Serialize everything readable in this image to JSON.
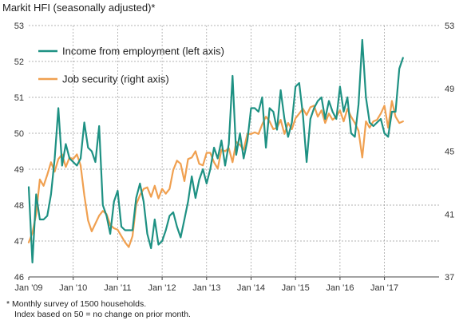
{
  "chart_data": {
    "type": "line",
    "title": "Markit HFI (seasonally adjusted)*",
    "footnotes": [
      "* Monthly survey of 1500 households.",
      "Index based on 50 = no change on prior month."
    ],
    "x_tick_labels": [
      "Jan '09",
      "Jan '10",
      "Jan '11",
      "Jan '12",
      "Jan '13",
      "Jan '14",
      "Jan '15",
      "Jan '16",
      "Jan '17"
    ],
    "y_left": {
      "ticks": [
        46,
        47,
        48,
        49,
        50,
        51,
        52,
        53
      ],
      "range": [
        46,
        53
      ]
    },
    "y_right": {
      "ticks": [
        37,
        41,
        45,
        49,
        53
      ],
      "range": [
        37,
        53
      ]
    },
    "grid": true,
    "legend_position": "top-left",
    "x_start": "2009-01",
    "series": [
      {
        "name": "Income from employment (left axis)",
        "axis": "left",
        "color": "#1e9183",
        "values": [
          48.5,
          46.4,
          48.3,
          47.6,
          47.6,
          47.7,
          48.3,
          49.3,
          50.7,
          49.1,
          49.7,
          49.3,
          49.2,
          49.1,
          49.3,
          50.3,
          49.6,
          49.5,
          49.2,
          50.2,
          48.0,
          47.7,
          47.2,
          48.1,
          48.4,
          47.4,
          47.3,
          47.3,
          47.3,
          48.2,
          48.6,
          48.1,
          47.2,
          46.8,
          47.6,
          46.9,
          47.0,
          47.3,
          47.7,
          47.8,
          47.4,
          47.1,
          47.6,
          48.1,
          48.8,
          48.2,
          48.7,
          49.0,
          48.6,
          49.0,
          49.6,
          49.3,
          49.8,
          49.1,
          49.7,
          51.6,
          49.4,
          50.0,
          49.3,
          49.8,
          50.7,
          50.7,
          50.6,
          51.0,
          49.6,
          50.7,
          50.6,
          50.1,
          51.2,
          50.4,
          49.9,
          50.3,
          51.3,
          51.4,
          50.5,
          49.2,
          50.4,
          50.7,
          50.9,
          51.0,
          50.4,
          50.9,
          50.6,
          50.4,
          51.3,
          50.6,
          51.0,
          50.0,
          49.9,
          50.8,
          52.6,
          51.0,
          50.3,
          50.2,
          50.3,
          50.4,
          50.0,
          49.9,
          50.6,
          50.6,
          51.8,
          52.1
        ]
      },
      {
        "name": "Job security (right axis)",
        "axis": "right",
        "color": "#f0a050",
        "values": [
          39.2,
          39.8,
          41.0,
          43.2,
          42.8,
          43.5,
          44.3,
          43.7,
          44.5,
          44.8,
          44.0,
          44.6,
          44.5,
          44.8,
          44.1,
          42.2,
          40.6,
          39.9,
          40.4,
          40.9,
          41.2,
          41.0,
          40.3,
          40.1,
          40.0,
          39.6,
          39.2,
          38.9,
          39.6,
          41.6,
          42.2,
          42.6,
          42.7,
          42.1,
          42.8,
          42.0,
          42.6,
          42.3,
          42.6,
          43.8,
          44.4,
          44.2,
          43.1,
          44.5,
          44.6,
          45.0,
          44.2,
          44.1,
          44.9,
          44.9,
          44.3,
          43.9,
          45.1,
          45.0,
          45.2,
          44.3,
          45.6,
          45.4,
          45.1,
          46.1,
          46.1,
          46.2,
          46.1,
          46.7,
          47.2,
          46.9,
          46.4,
          46.5,
          47.0,
          46.1,
          46.8,
          46.4,
          47.1,
          47.4,
          47.7,
          47.3,
          47.8,
          47.9,
          47.2,
          47.6,
          46.8,
          47.4,
          47.0,
          47.2,
          47.6,
          46.9,
          47.7,
          47.2,
          46.8,
          46.3,
          44.6,
          46.9,
          46.5,
          46.9,
          47.0,
          47.4,
          47.9,
          46.5,
          48.2,
          47.2,
          46.8,
          46.9
        ]
      }
    ]
  }
}
